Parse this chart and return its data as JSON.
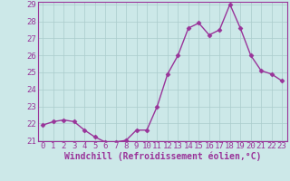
{
  "x": [
    0,
    1,
    2,
    3,
    4,
    5,
    6,
    7,
    8,
    9,
    10,
    11,
    12,
    13,
    14,
    15,
    16,
    17,
    18,
    19,
    20,
    21,
    22,
    23
  ],
  "y": [
    21.9,
    22.1,
    22.2,
    22.1,
    21.6,
    21.2,
    20.9,
    20.9,
    21.0,
    21.6,
    21.6,
    23.0,
    24.9,
    26.0,
    27.6,
    27.9,
    27.2,
    27.5,
    29.0,
    27.6,
    26.0,
    25.1,
    24.9,
    24.5
  ],
  "line_color": "#993399",
  "marker": "D",
  "marker_size": 2.5,
  "linewidth": 1.0,
  "bg_color": "#cce8e8",
  "grid_color": "#aacccc",
  "xlabel": "Windchill (Refroidissement éolien,°C)",
  "xlabel_fontsize": 7,
  "tick_fontsize": 6.5,
  "ylim": [
    21,
    29
  ],
  "yticks": [
    21,
    22,
    23,
    24,
    25,
    26,
    27,
    28,
    29
  ],
  "xticks": [
    0,
    1,
    2,
    3,
    4,
    5,
    6,
    7,
    8,
    9,
    10,
    11,
    12,
    13,
    14,
    15,
    16,
    17,
    18,
    19,
    20,
    21,
    22,
    23
  ]
}
